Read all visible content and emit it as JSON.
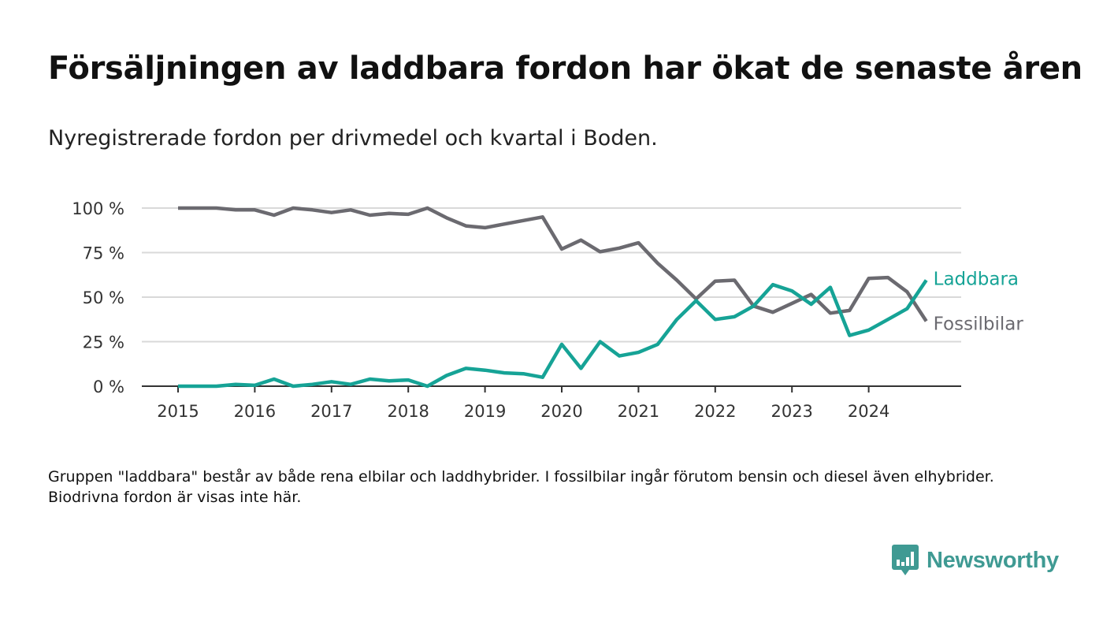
{
  "header": {
    "title": "Försäljningen av laddbara fordon har ökat de senaste åren",
    "subtitle": "Nyregistrerade fordon per drivmedel och kvartal i Boden."
  },
  "footer": {
    "note": "Gruppen \"laddbara\" består av både rena elbilar och laddhybrider. I fossilbilar ingår förutom bensin och diesel även elhybrider. Biodrivna fordon är visas inte här.",
    "brand": "Newsworthy"
  },
  "chart_data": {
    "type": "line",
    "x": [
      2015.0,
      2015.25,
      2015.5,
      2015.75,
      2016.0,
      2016.25,
      2016.5,
      2016.75,
      2017.0,
      2017.25,
      2017.5,
      2017.75,
      2018.0,
      2018.25,
      2018.5,
      2018.75,
      2019.0,
      2019.25,
      2019.5,
      2019.75,
      2020.0,
      2020.25,
      2020.5,
      2020.75,
      2021.0,
      2021.25,
      2021.5,
      2021.75,
      2022.0,
      2022.25,
      2022.5,
      2022.75,
      2023.0,
      2023.25,
      2023.5,
      2023.75,
      2024.0,
      2024.25,
      2024.5,
      2024.75
    ],
    "series": [
      {
        "name": "Laddbara",
        "color": "#16a396",
        "values": [
          0,
          0,
          0,
          1,
          0.5,
          4,
          0,
          1,
          2.5,
          1,
          4,
          3,
          3.5,
          0,
          6,
          10,
          9,
          7.5,
          7,
          5,
          23.5,
          10,
          25,
          17,
          19,
          23.5,
          37.5,
          48,
          37.5,
          39,
          45,
          57,
          53.5,
          46,
          55.5,
          28.5,
          31.5,
          37.5,
          43.5,
          59.5
        ]
      },
      {
        "name": "Fossilbilar",
        "color": "#6b6a70",
        "values": [
          100,
          100,
          100,
          99,
          99,
          96,
          100,
          99,
          97.5,
          99,
          96,
          97,
          96.5,
          100,
          94.5,
          90,
          89,
          91,
          93,
          95,
          77,
          82,
          75.5,
          77.5,
          80.5,
          69,
          59.5,
          49,
          59,
          59.5,
          45,
          41.5,
          46.5,
          51.5,
          41,
          42.5,
          60.5,
          61,
          53,
          36.5
        ]
      }
    ],
    "xticks": [
      "2015",
      "2016",
      "2017",
      "2018",
      "2019",
      "2020",
      "2021",
      "2022",
      "2023",
      "2024"
    ],
    "yticks": [
      "0 %",
      "25 %",
      "50 %",
      "75 %",
      "100 %"
    ],
    "ylim": [
      0,
      100
    ],
    "grid": "horizontal",
    "legend": "direct labels at line ends"
  }
}
